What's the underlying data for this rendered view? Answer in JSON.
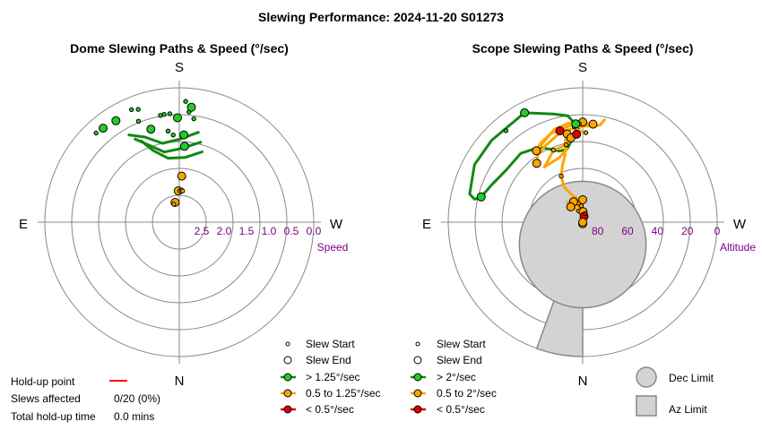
{
  "title": "Slewing Performance: 2024-11-20 S01273",
  "colors": {
    "fast": "#22cc22",
    "fast_line": "#118811",
    "medium": "#ffa500",
    "medium_line": "#ffa500",
    "slow": "#dd0000",
    "ring": "#888888",
    "axis_label": "#800080",
    "limit_fill": "#d3d3d3",
    "limit_stroke": "#888888",
    "holdup": "#ff0000"
  },
  "compass": {
    "north": "N",
    "south": "S",
    "east": "E",
    "west": "W"
  },
  "summary": {
    "holdup_label": "Hold-up point",
    "slews_label": "Slews affected",
    "slews_value": "0/20 (0%)",
    "total_label": "Total hold-up time",
    "total_value": "0.0 mins"
  },
  "limits": {
    "dec_label": "Dec Limit",
    "az_label": "Az Limit"
  },
  "chart_data": [
    {
      "type": "polar-scatter",
      "title": "Dome Slewing Paths & Speed (°/sec)",
      "radial_label": "Speed",
      "radial_ticks": [
        "2.5",
        "2.0",
        "1.5",
        "1.0",
        "0.5",
        "0.0"
      ],
      "radial_range": [
        3.0,
        0.0
      ],
      "legend": {
        "start": "Slew Start",
        "end": "Slew End",
        "fast": "> 1.25°/sec",
        "medium": "0.5 to 1.25°/sec",
        "slow": "< 0.5°/sec"
      },
      "paths": [
        {
          "speed": "fast",
          "points": [
            [
              198,
              1.35
            ],
            [
              185,
              1.55
            ],
            [
              170,
              1.55
            ],
            [
              160,
              1.3
            ],
            [
              155,
              1.0
            ]
          ]
        },
        {
          "speed": "fast",
          "points": [
            [
              195,
              1.15
            ],
            [
              182,
              1.35
            ],
            [
              168,
              1.4
            ],
            [
              160,
              1.2
            ],
            [
              152,
              0.9
            ]
          ]
        },
        {
          "speed": "fast",
          "points": [
            [
              192,
              0.95
            ],
            [
              180,
              1.15
            ],
            [
              168,
              1.2
            ],
            [
              158,
              0.95
            ],
            [
              150,
              0.75
            ]
          ]
        }
      ],
      "points": [
        {
          "az": 178,
          "speed": 2.3,
          "cls": "medium",
          "size": "big"
        },
        {
          "az": 181,
          "speed": 2.3,
          "cls": "medium",
          "size": "small"
        },
        {
          "az": 184,
          "speed": 2.28,
          "cls": "medium",
          "size": "small"
        },
        {
          "az": 186,
          "speed": 2.3,
          "cls": "medium",
          "size": "small"
        },
        {
          "az": 184,
          "speed": 1.97,
          "cls": "medium",
          "size": "small"
        },
        {
          "az": 183,
          "speed": 1.97,
          "cls": "medium",
          "size": "big"
        },
        {
          "az": 168,
          "speed": 2.55,
          "cls": "medium",
          "size": "big"
        },
        {
          "az": 163,
          "speed": 2.58,
          "cls": "medium",
          "size": "small"
        },
        {
          "az": 184,
          "speed": 1.3,
          "cls": "fast",
          "size": "big"
        },
        {
          "az": 183,
          "speed": 1.05,
          "cls": "fast",
          "size": "big"
        },
        {
          "az": 176,
          "speed": 1.05,
          "cls": "fast",
          "size": "small"
        },
        {
          "az": 173,
          "speed": 0.95,
          "cls": "fast",
          "size": "small"
        },
        {
          "az": 163,
          "speed": 0.83,
          "cls": "fast",
          "size": "big"
        },
        {
          "az": 179,
          "speed": 0.67,
          "cls": "fast",
          "size": "big"
        },
        {
          "az": 158,
          "speed": 0.57,
          "cls": "fast",
          "size": "small"
        },
        {
          "az": 170,
          "speed": 0.58,
          "cls": "fast",
          "size": "small"
        },
        {
          "az": 172,
          "speed": 0.57,
          "cls": "fast",
          "size": "small"
        },
        {
          "az": 175,
          "speed": 0.57,
          "cls": "fast",
          "size": "small"
        },
        {
          "az": 185,
          "speed": 0.53,
          "cls": "fast",
          "size": "small"
        },
        {
          "az": 188,
          "speed": 0.67,
          "cls": "fast",
          "size": "small"
        },
        {
          "az": 186,
          "speed": 0.42,
          "cls": "fast",
          "size": "big"
        },
        {
          "az": 183,
          "speed": 0.3,
          "cls": "fast",
          "size": "small"
        },
        {
          "az": 160,
          "speed": 0.32,
          "cls": "fast",
          "size": "small"
        },
        {
          "az": 157,
          "speed": 0.27,
          "cls": "fast",
          "size": "small"
        },
        {
          "az": 148,
          "speed": 0.33,
          "cls": "fast",
          "size": "big"
        },
        {
          "az": 141,
          "speed": 0.3,
          "cls": "fast",
          "size": "big"
        },
        {
          "az": 137,
          "speed": 0.28,
          "cls": "fast",
          "size": "small"
        }
      ]
    },
    {
      "type": "polar-scatter",
      "title": "Scope Slewing Paths & Speed (°/sec)",
      "radial_label": "Altitude",
      "radial_ticks": [
        "80",
        "60",
        "40",
        "20",
        "0"
      ],
      "radial_range": [
        90,
        0
      ],
      "legend": {
        "start": "Slew Start",
        "end": "Slew End",
        "fast": "> 2°/sec",
        "medium": "0.5 to 2°/sec",
        "slow": "< 0.5°/sec"
      },
      "dec_limit": {
        "az": 0,
        "alt": 75,
        "radius_deg": 16
      },
      "az_limit": {
        "az_from": 0,
        "az_to": 20,
        "alt_min": 0,
        "alt_max": 74
      },
      "paths": [
        {
          "speed": "fast",
          "points": [
            [
              182,
              23
            ],
            [
              176,
              28
            ],
            [
              172,
              35
            ],
            [
              168,
              40
            ],
            [
              162,
              40
            ],
            [
              150,
              32
            ],
            [
              138,
              28
            ],
            [
              124,
              28
            ],
            [
              112,
              24
            ],
            [
              104,
              20
            ],
            [
              102,
              16
            ],
            [
              104,
              12
            ],
            [
              118,
              8
            ],
            [
              132,
              8
            ],
            [
              152,
              7
            ],
            [
              165,
              15
            ],
            [
              172,
              18
            ],
            [
              175,
              23
            ],
            [
              176,
              24
            ]
          ]
        },
        {
          "speed": "medium",
          "points": [
            [
              180,
              23
            ],
            [
              172,
              25
            ],
            [
              160,
              27
            ],
            [
              152,
              30
            ],
            [
              147,
              33
            ],
            [
              163,
              25
            ],
            [
              172,
              23
            ],
            [
              186,
              24
            ]
          ]
        },
        {
          "speed": "medium",
          "points": [
            [
              192,
              20
            ],
            [
              190,
              24
            ],
            [
              178,
              26
            ],
            [
              166,
              28
            ],
            [
              154,
              33
            ],
            [
              146,
              36
            ],
            [
              142,
              40
            ]
          ]
        },
        {
          "speed": "medium",
          "points": [
            [
              176,
              31
            ],
            [
              172,
              34
            ],
            [
              168,
              37
            ],
            [
              158,
              38
            ],
            [
              150,
              43
            ],
            [
              145,
              45
            ],
            [
              160,
              44
            ],
            [
              168,
              40
            ]
          ]
        },
        {
          "speed": "medium",
          "points": [
            [
              170,
              30
            ],
            [
              168,
              34
            ],
            [
              165,
              44
            ],
            [
              160,
              50
            ],
            [
              155,
              56
            ],
            [
              152,
              63
            ],
            [
              158,
              70
            ],
            [
              168,
              74
            ],
            [
              175,
              79
            ],
            [
              185,
              85
            ],
            [
              170,
              84
            ],
            [
              160,
              82
            ],
            [
              150,
              80
            ],
            [
              142,
              77
            ],
            [
              158,
              78
            ],
            [
              170,
              80
            ],
            [
              186,
              84
            ]
          ]
        },
        {
          "speed": "medium",
          "points": [
            [
              180,
              83
            ],
            [
              175,
              79
            ],
            [
              166,
              77
            ],
            [
              156,
              75
            ],
            [
              146,
              74
            ],
            [
              142,
              73
            ],
            [
              150,
              75
            ],
            [
              162,
              78
            ]
          ]
        },
        {
          "speed": "medium",
          "points": [
            [
              182,
              30
            ],
            [
              176,
              28
            ],
            [
              168,
              36
            ]
          ]
        },
        {
          "speed": "slow",
          "points": [
            [
              193,
              86
            ],
            [
              196,
              84
            ]
          ]
        }
      ],
      "points": [
        {
          "az": 180,
          "alt": 23,
          "cls": "medium",
          "size": "big"
        },
        {
          "az": 178,
          "alt": 24,
          "cls": "medium",
          "size": "small"
        },
        {
          "az": 175,
          "alt": 26,
          "cls": "medium",
          "size": "small"
        },
        {
          "az": 170,
          "alt": 30,
          "cls": "medium",
          "size": "big"
        },
        {
          "az": 172,
          "alt": 33,
          "cls": "medium",
          "size": "big"
        },
        {
          "az": 168,
          "alt": 37,
          "cls": "medium",
          "size": "small"
        },
        {
          "az": 176,
          "alt": 31,
          "cls": "slow",
          "size": "big"
        },
        {
          "az": 166,
          "alt": 27,
          "cls": "slow",
          "size": "big"
        },
        {
          "az": 182,
          "alt": 30,
          "cls": "medium",
          "size": "small"
        },
        {
          "az": 186,
          "alt": 24,
          "cls": "medium",
          "size": "big"
        },
        {
          "az": 147,
          "alt": 33,
          "cls": "medium",
          "size": "big"
        },
        {
          "az": 142,
          "alt": 40,
          "cls": "medium",
          "size": "big"
        },
        {
          "az": 158,
          "alt": 38,
          "cls": "medium",
          "size": "small"
        },
        {
          "az": 155,
          "alt": 56,
          "cls": "medium",
          "size": "small"
        },
        {
          "az": 175,
          "alt": 79,
          "cls": "medium",
          "size": "small"
        },
        {
          "az": 168,
          "alt": 77,
          "cls": "medium",
          "size": "small"
        },
        {
          "az": 160,
          "alt": 82,
          "cls": "medium",
          "size": "small"
        },
        {
          "az": 156,
          "alt": 75,
          "cls": "medium",
          "size": "big"
        },
        {
          "az": 142,
          "alt": 77,
          "cls": "medium",
          "size": "big"
        },
        {
          "az": 186,
          "alt": 84,
          "cls": "medium",
          "size": "small"
        },
        {
          "az": 182,
          "alt": 83,
          "cls": "medium",
          "size": "big"
        },
        {
          "az": 193,
          "alt": 86,
          "cls": "slow",
          "size": "big"
        },
        {
          "az": 196,
          "alt": 84,
          "cls": "slow",
          "size": "small"
        },
        {
          "az": 180,
          "alt": 75,
          "cls": "medium",
          "size": "big"
        },
        {
          "az": 176,
          "alt": 24,
          "cls": "fast",
          "size": "big"
        },
        {
          "az": 104,
          "alt": 20,
          "cls": "fast",
          "size": "big"
        },
        {
          "az": 152,
          "alt": 7,
          "cls": "fast",
          "size": "big"
        },
        {
          "az": 140,
          "alt": 10,
          "cls": "fast",
          "size": "small"
        },
        {
          "az": 0,
          "alt": 89,
          "cls": "medium",
          "size": "big"
        },
        {
          "az": 20,
          "alt": 90,
          "cls": "medium",
          "size": "big"
        }
      ]
    }
  ]
}
